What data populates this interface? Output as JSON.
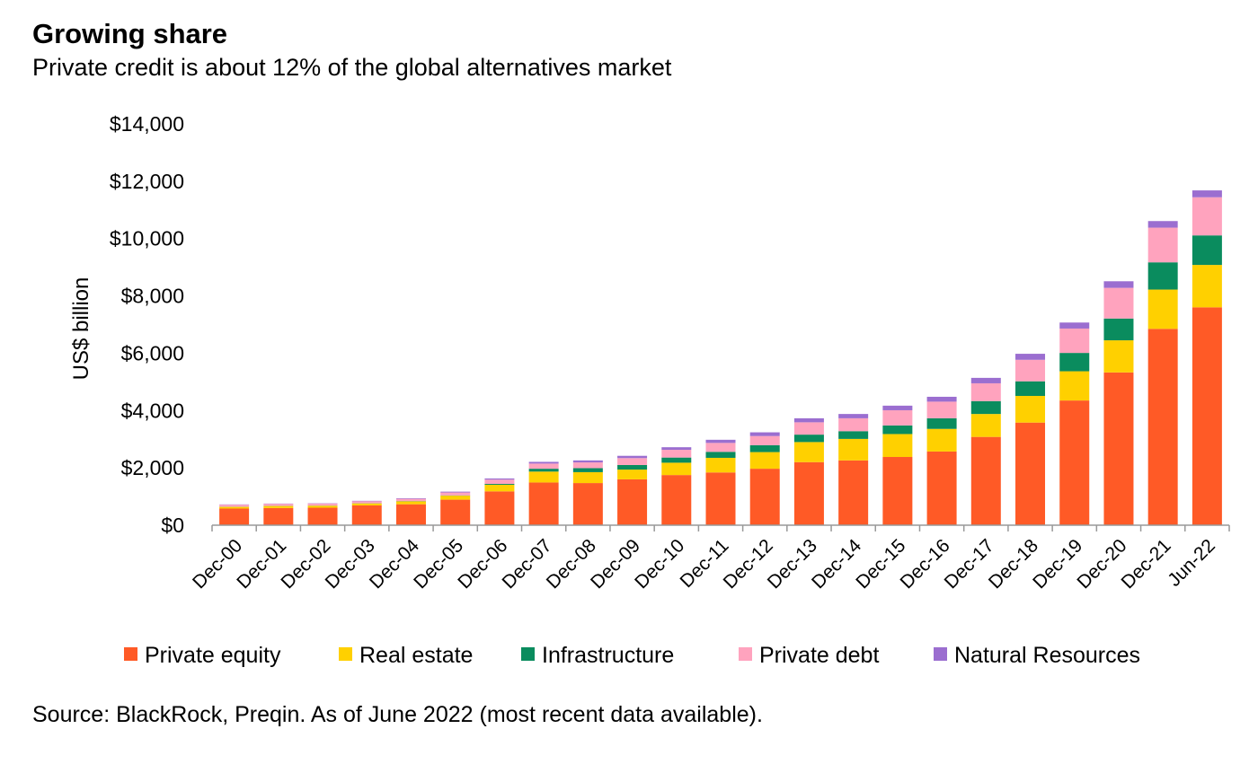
{
  "title": "Growing share",
  "subtitle": "Private credit is about 12% of the global alternatives market",
  "source": "Source: BlackRock,  Preqin. As of June 2022 (most recent data available).",
  "chart_data": {
    "type": "bar",
    "stacked": true,
    "ylabel": "US$ billion",
    "xlabel": "",
    "ylim": [
      0,
      14000
    ],
    "ytick_values": [
      0,
      2000,
      4000,
      6000,
      8000,
      10000,
      12000,
      14000
    ],
    "ytick_labels": [
      "$0",
      "$2,000",
      "$4,000",
      "$6,000",
      "$8,000",
      "$10,000",
      "$12,000",
      "$14,000"
    ],
    "grid": false,
    "legend_position": "bottom",
    "categories": [
      "Dec-00",
      "Dec-01",
      "Dec-02",
      "Dec-03",
      "Dec-04",
      "Dec-05",
      "Dec-06",
      "Dec-07",
      "Dec-08",
      "Dec-09",
      "Dec-10",
      "Dec-11",
      "Dec-12",
      "Dec-13",
      "Dec-14",
      "Dec-15",
      "Dec-16",
      "Dec-17",
      "Dec-18",
      "Dec-19",
      "Dec-20",
      "Dec-21",
      "Jun-22"
    ],
    "series": [
      {
        "name": "Private equity",
        "color": "#ff5a26",
        "values": [
          580,
          600,
          610,
          690,
          730,
          890,
          1180,
          1490,
          1470,
          1600,
          1750,
          1840,
          1970,
          2200,
          2260,
          2380,
          2570,
          3080,
          3580,
          4350,
          5330,
          6850,
          7600
        ]
      },
      {
        "name": "Real estate",
        "color": "#ffd000",
        "values": [
          60,
          70,
          70,
          70,
          100,
          140,
          230,
          380,
          380,
          340,
          430,
          510,
          580,
          700,
          750,
          800,
          790,
          800,
          930,
          1020,
          1120,
          1370,
          1480
        ]
      },
      {
        "name": "Infrastructure",
        "color": "#0a8c5e",
        "values": [
          5,
          5,
          5,
          5,
          10,
          10,
          30,
          100,
          140,
          160,
          180,
          210,
          240,
          260,
          270,
          300,
          370,
          450,
          510,
          640,
          760,
          950,
          1030
        ]
      },
      {
        "name": "Private debt",
        "color": "#ffa3be",
        "values": [
          70,
          70,
          70,
          70,
          80,
          100,
          150,
          180,
          200,
          240,
          270,
          310,
          320,
          430,
          450,
          530,
          580,
          620,
          750,
          850,
          1070,
          1210,
          1330
        ]
      },
      {
        "name": "Natural Resources",
        "color": "#9b6ed0",
        "values": [
          10,
          10,
          10,
          15,
          20,
          30,
          40,
          60,
          70,
          80,
          90,
          110,
          130,
          140,
          150,
          160,
          170,
          190,
          210,
          210,
          230,
          230,
          240
        ]
      }
    ]
  }
}
